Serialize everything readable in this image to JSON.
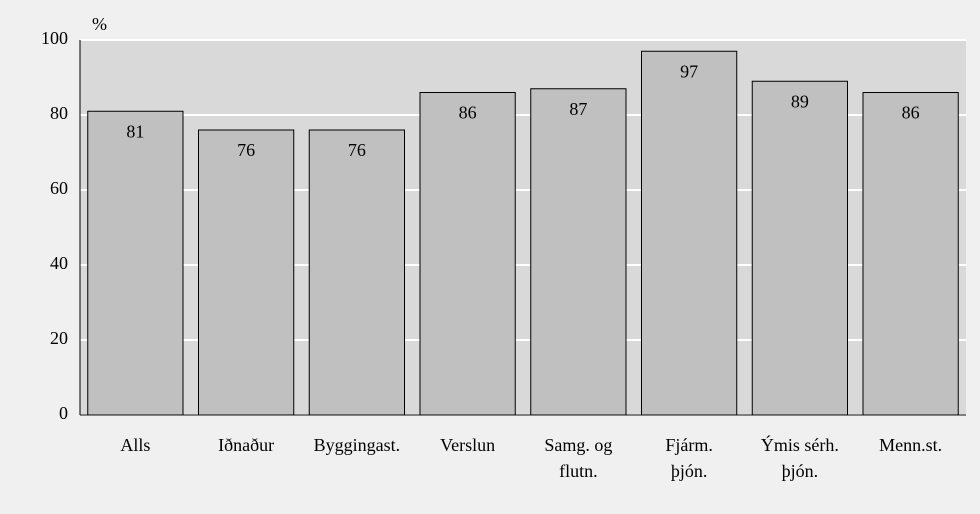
{
  "chart_data": {
    "type": "bar",
    "unit_label": "%",
    "categories": [
      "Alls",
      "Iðnaður",
      "Byggingast.",
      "Verslun",
      "Samg. og\nflutn.",
      "Fjárm.\nþjón.",
      "Ýmis sérh.\nþjón.",
      "Menn.st."
    ],
    "values": [
      81,
      76,
      76,
      86,
      87,
      97,
      89,
      86
    ],
    "color": "#c0c0c0",
    "ylim": [
      0,
      100
    ],
    "yticks": [
      0,
      20,
      40,
      60,
      80,
      100
    ],
    "grid": true
  }
}
